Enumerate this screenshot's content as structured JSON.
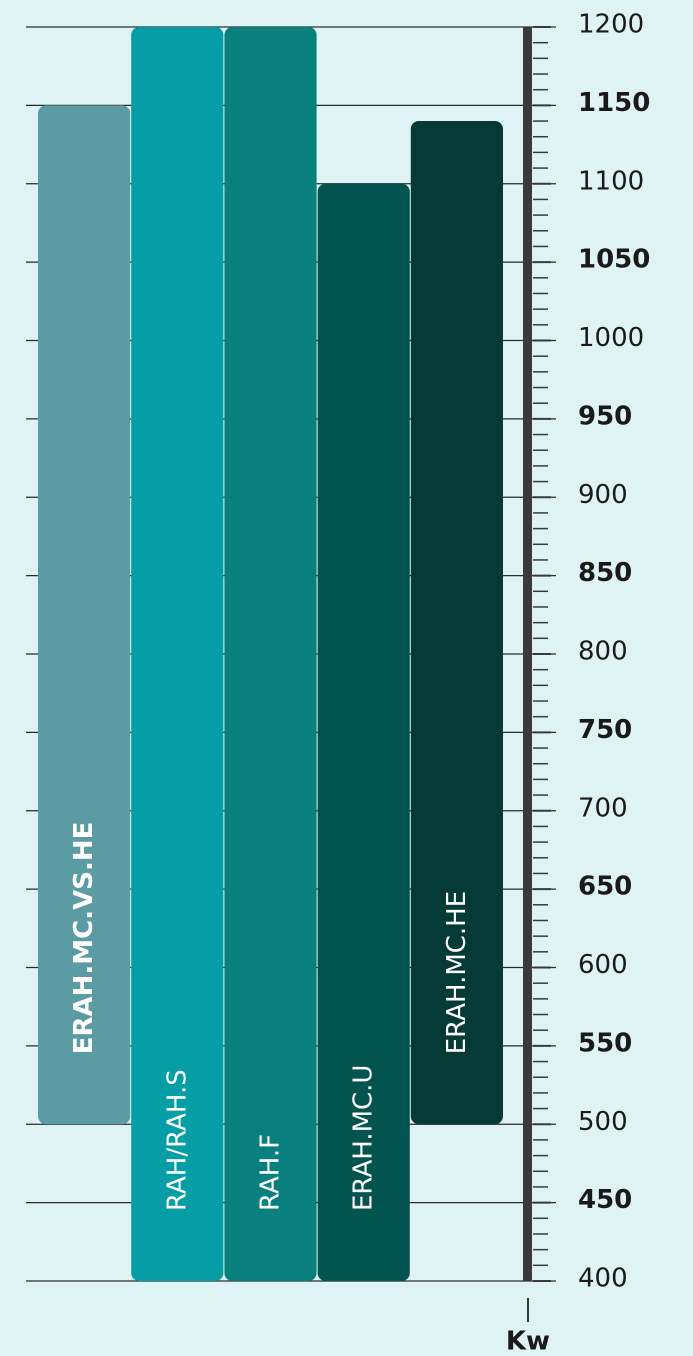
{
  "chart_data": {
    "type": "bar",
    "categories": [
      "ERAH.MC.VS.HE",
      "RAH/RAH.S",
      "RAH.F",
      "ERAH.MC.U",
      "ERAH.MC.HE"
    ],
    "low": [
      500,
      400,
      400,
      400,
      500
    ],
    "high": [
      1150,
      1200,
      1200,
      1100,
      1140
    ],
    "colors": [
      "#5b9ba4",
      "#069ea6",
      "#0a807e",
      "#03534f",
      "#053a36"
    ],
    "ylim": [
      400,
      1200
    ],
    "yticks": [
      400,
      450,
      500,
      550,
      600,
      650,
      700,
      750,
      800,
      850,
      900,
      950,
      1000,
      1050,
      1100,
      1150,
      1200
    ],
    "ylabel": "Kw",
    "grid": true,
    "yaxis_side": "right"
  }
}
